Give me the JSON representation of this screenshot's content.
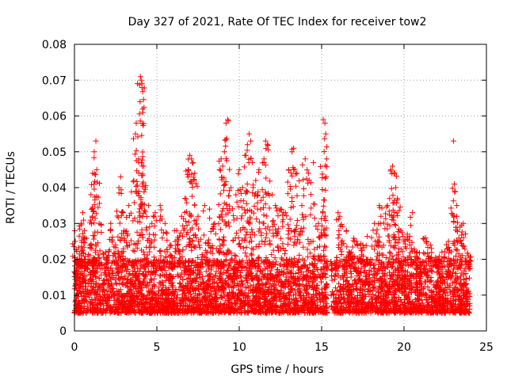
{
  "chart_data": {
    "type": "scatter",
    "title": "Day 327 of 2021, Rate Of TEC Index for receiver tow2",
    "xlabel": "GPS time / hours",
    "ylabel": "ROTI / TECUs",
    "xlim": [
      0,
      25
    ],
    "ylim": [
      0,
      0.08
    ],
    "x_ticks": [
      0,
      5,
      10,
      15,
      20,
      25
    ],
    "x_tick_labels": [
      "0",
      "5",
      "10",
      "15",
      "20",
      "25"
    ],
    "y_ticks": [
      0,
      0.01,
      0.02,
      0.03,
      0.04,
      0.05,
      0.06,
      0.07,
      0.08
    ],
    "y_tick_labels": [
      "0",
      "0.01",
      "0.02",
      "0.03",
      "0.04",
      "0.05",
      "0.06",
      "0.07",
      "0.08"
    ],
    "grid": true,
    "marker": "+",
    "color": "#ff0000",
    "series": [
      {
        "name": "ROTI",
        "points": [
          [
            0.05,
            0.025
          ],
          [
            0.1,
            0.015
          ],
          [
            0.3,
            0.02
          ],
          [
            0.4,
            0.03
          ],
          [
            0.5,
            0.033
          ],
          [
            0.6,
            0.028
          ],
          [
            1.0,
            0.038
          ],
          [
            1.1,
            0.044
          ],
          [
            1.2,
            0.05
          ],
          [
            1.3,
            0.053
          ],
          [
            1.35,
            0.045
          ],
          [
            1.5,
            0.03
          ],
          [
            1.9,
            0.022
          ],
          [
            2.2,
            0.03
          ],
          [
            2.5,
            0.024
          ],
          [
            2.7,
            0.04
          ],
          [
            2.8,
            0.043
          ],
          [
            3.0,
            0.028
          ],
          [
            3.3,
            0.035
          ],
          [
            3.6,
            0.042
          ],
          [
            3.7,
            0.055
          ],
          [
            3.75,
            0.058
          ],
          [
            3.9,
            0.048
          ],
          [
            4.0,
            0.071
          ],
          [
            4.05,
            0.07
          ],
          [
            4.1,
            0.069
          ],
          [
            4.15,
            0.061
          ],
          [
            4.2,
            0.046
          ],
          [
            4.3,
            0.04
          ],
          [
            4.5,
            0.035
          ],
          [
            4.7,
            0.03
          ],
          [
            4.9,
            0.033
          ],
          [
            5.2,
            0.035
          ],
          [
            5.5,
            0.03
          ],
          [
            5.8,
            0.024
          ],
          [
            6.2,
            0.028
          ],
          [
            6.5,
            0.032
          ],
          [
            6.7,
            0.037
          ],
          [
            6.9,
            0.045
          ],
          [
            7.0,
            0.049
          ],
          [
            7.1,
            0.048
          ],
          [
            7.2,
            0.047
          ],
          [
            7.3,
            0.044
          ],
          [
            7.5,
            0.032
          ],
          [
            7.9,
            0.035
          ],
          [
            8.2,
            0.034
          ],
          [
            8.5,
            0.03
          ],
          [
            8.8,
            0.045
          ],
          [
            8.9,
            0.048
          ],
          [
            9.0,
            0.046
          ],
          [
            9.1,
            0.05
          ],
          [
            9.2,
            0.058
          ],
          [
            9.3,
            0.059
          ],
          [
            9.5,
            0.04
          ],
          [
            9.8,
            0.038
          ],
          [
            10.0,
            0.045
          ],
          [
            10.2,
            0.04
          ],
          [
            10.4,
            0.049
          ],
          [
            10.5,
            0.052
          ],
          [
            10.6,
            0.055
          ],
          [
            10.7,
            0.053
          ],
          [
            10.8,
            0.047
          ],
          [
            11.0,
            0.042
          ],
          [
            11.2,
            0.045
          ],
          [
            11.5,
            0.048
          ],
          [
            11.6,
            0.053
          ],
          [
            11.7,
            0.052
          ],
          [
            12.0,
            0.038
          ],
          [
            12.2,
            0.035
          ],
          [
            12.5,
            0.034
          ],
          [
            12.8,
            0.033
          ],
          [
            13.0,
            0.045
          ],
          [
            13.2,
            0.05
          ],
          [
            13.3,
            0.051
          ],
          [
            13.5,
            0.044
          ],
          [
            13.8,
            0.035
          ],
          [
            14.0,
            0.048
          ],
          [
            14.2,
            0.044
          ],
          [
            14.5,
            0.047
          ],
          [
            14.8,
            0.03
          ],
          [
            15.1,
            0.059
          ],
          [
            15.2,
            0.058
          ],
          [
            15.25,
            0.055
          ],
          [
            15.3,
            0.048
          ],
          [
            16.0,
            0.033
          ],
          [
            16.1,
            0.032
          ],
          [
            16.5,
            0.028
          ],
          [
            16.8,
            0.022
          ],
          [
            17.0,
            0.025
          ],
          [
            17.5,
            0.024
          ],
          [
            17.8,
            0.02
          ],
          [
            18.2,
            0.03
          ],
          [
            18.5,
            0.035
          ],
          [
            18.6,
            0.032
          ],
          [
            19.0,
            0.035
          ],
          [
            19.2,
            0.045
          ],
          [
            19.3,
            0.046
          ],
          [
            19.4,
            0.044
          ],
          [
            19.5,
            0.04
          ],
          [
            19.6,
            0.037
          ],
          [
            19.8,
            0.028
          ],
          [
            20.2,
            0.027
          ],
          [
            20.5,
            0.033
          ],
          [
            20.8,
            0.022
          ],
          [
            21.3,
            0.026
          ],
          [
            21.6,
            0.024
          ],
          [
            22.0,
            0.02
          ],
          [
            22.3,
            0.022
          ],
          [
            22.7,
            0.025
          ],
          [
            23.0,
            0.053
          ],
          [
            23.05,
            0.041
          ],
          [
            23.2,
            0.032
          ],
          [
            23.4,
            0.029
          ],
          [
            23.6,
            0.03
          ],
          [
            23.9,
            0.021
          ]
        ],
        "gaps": [
          [
            15.35,
            15.55
          ]
        ],
        "dense_band": {
          "x_range": [
            0,
            24
          ],
          "baseline_min": 0.005,
          "baseline_typical_max": 0.02,
          "baseline_mean": 0.011
        }
      }
    ]
  }
}
